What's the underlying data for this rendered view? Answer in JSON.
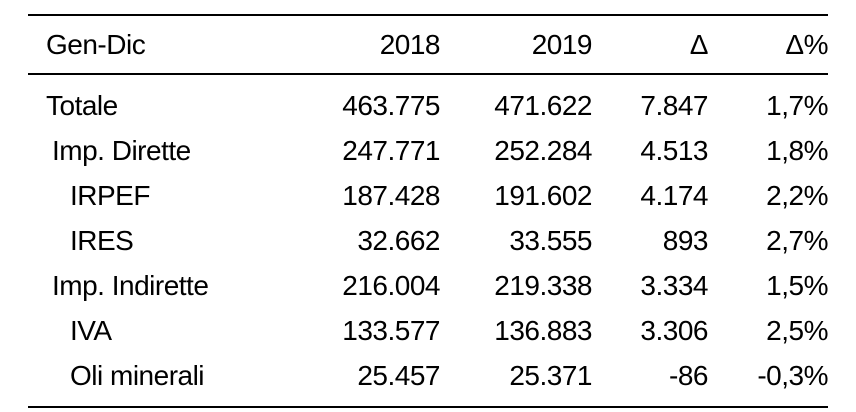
{
  "table": {
    "headers": [
      "Gen-Dic",
      "2018",
      "2019",
      "Δ",
      "Δ%"
    ],
    "rows": [
      {
        "label": "Totale",
        "level": 0,
        "v2018": "463.775",
        "v2019": "471.622",
        "delta": "7.847",
        "pct": "1,7%"
      },
      {
        "label": "Imp. Dirette",
        "level": 1,
        "v2018": "247.771",
        "v2019": "252.284",
        "delta": "4.513",
        "pct": "1,8%"
      },
      {
        "label": "IRPEF",
        "level": 2,
        "v2018": "187.428",
        "v2019": "191.602",
        "delta": "4.174",
        "pct": "2,2%"
      },
      {
        "label": "IRES",
        "level": 2,
        "v2018": "32.662",
        "v2019": "33.555",
        "delta": "893",
        "pct": "2,7%"
      },
      {
        "label": "Imp. Indirette",
        "level": 1,
        "v2018": "216.004",
        "v2019": "219.338",
        "delta": "3.334",
        "pct": "1,5%"
      },
      {
        "label": "IVA",
        "level": 2,
        "v2018": "133.577",
        "v2019": "136.883",
        "delta": "3.306",
        "pct": "2,5%"
      },
      {
        "label": "Oli minerali",
        "level": 2,
        "v2018": "25.457",
        "v2019": "25.371",
        "delta": "-86",
        "pct": "-0,3%"
      }
    ]
  }
}
